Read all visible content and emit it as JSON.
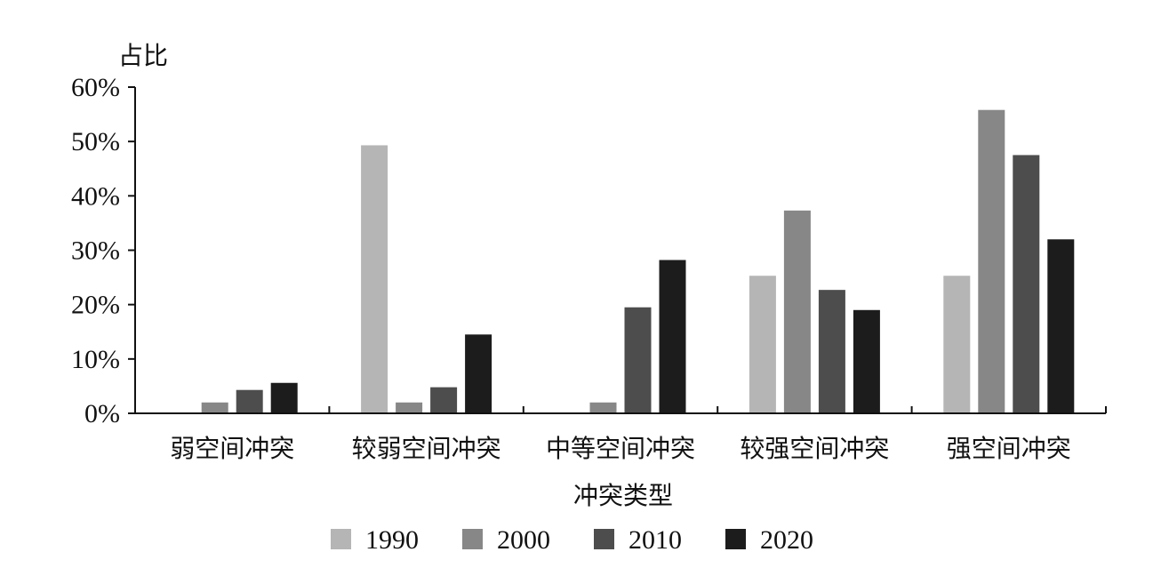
{
  "chart_data": {
    "type": "bar",
    "ylabel": "占比",
    "xlabel": "冲突类型",
    "categories": [
      "弱空间冲突",
      "较弱空间冲突",
      "中等空间冲突",
      "较强空间冲突",
      "强空间冲突"
    ],
    "yticks": [
      "0%",
      "10%",
      "20%",
      "30%",
      "40%",
      "50%",
      "60%"
    ],
    "ylim": [
      0,
      60
    ],
    "legend_position": "bottom",
    "series": [
      {
        "name": "1990",
        "color": "#b5b5b5",
        "values": [
          0,
          49.3,
          0,
          25.3,
          25.3
        ]
      },
      {
        "name": "2000",
        "color": "#878787",
        "values": [
          2.0,
          2.0,
          2.0,
          37.3,
          55.8
        ]
      },
      {
        "name": "2010",
        "color": "#4d4d4d",
        "values": [
          4.3,
          4.8,
          19.5,
          22.7,
          47.5
        ]
      },
      {
        "name": "2020",
        "color": "#1c1c1c",
        "values": [
          5.6,
          14.5,
          28.2,
          19.0,
          32.0
        ]
      }
    ]
  }
}
